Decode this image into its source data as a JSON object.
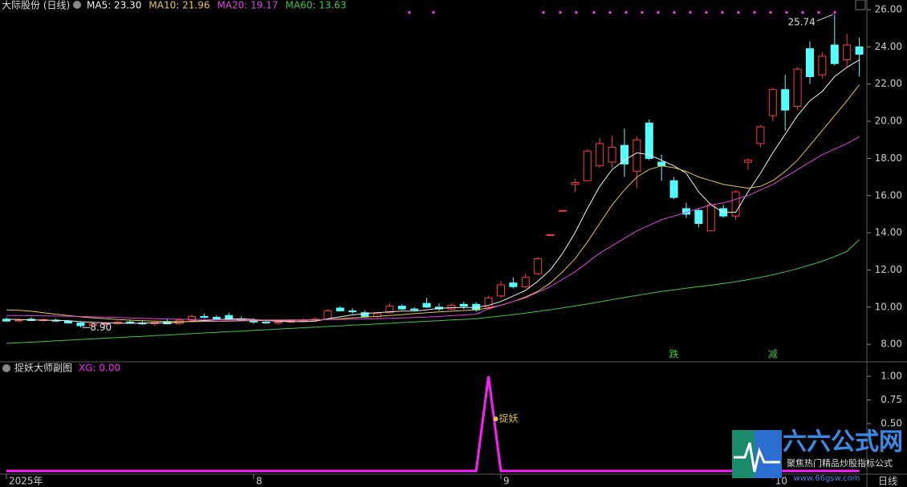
{
  "chart_data": [
    {
      "type": "candlestick",
      "title": "大际股份 (日线)",
      "ylim": [
        7.1,
        26.52
      ],
      "yticks": [
        {
          "value": 8,
          "label": "8.00"
        },
        {
          "value": 10,
          "label": "10.00"
        },
        {
          "value": 12,
          "label": "12.00"
        },
        {
          "value": 14,
          "label": "14.00"
        },
        {
          "value": 16,
          "label": "16.00"
        },
        {
          "value": 18,
          "label": "18.00"
        },
        {
          "value": 20,
          "label": "20.00"
        },
        {
          "value": 22,
          "label": "22.00"
        },
        {
          "value": 24,
          "label": "24.00"
        },
        {
          "value": 26,
          "label": "26.00"
        }
      ],
      "up_color": "#ff3c3c",
      "down_color": "#54ffff",
      "categories": [
        "2025年",
        null,
        null,
        null,
        null,
        null,
        null,
        null,
        null,
        null,
        null,
        null,
        null,
        null,
        null,
        null,
        null,
        null,
        null,
        null,
        "8",
        null,
        null,
        null,
        null,
        null,
        null,
        null,
        null,
        null,
        null,
        null,
        null,
        null,
        null,
        null,
        null,
        null,
        null,
        null,
        "9",
        null,
        null,
        null,
        null,
        null,
        null,
        null,
        null,
        null,
        null,
        null,
        null,
        null,
        null,
        null,
        null,
        null,
        null,
        null,
        null,
        null,
        "10",
        null,
        null,
        null,
        null,
        null,
        null,
        null
      ],
      "period_label": "日线",
      "ohlc": [
        [
          9.35,
          9.45,
          9.2,
          9.25
        ],
        [
          9.3,
          9.4,
          9.2,
          9.3
        ],
        [
          9.35,
          9.45,
          9.25,
          9.28
        ],
        [
          9.3,
          9.4,
          9.2,
          9.32
        ],
        [
          9.3,
          9.38,
          9.2,
          9.25
        ],
        [
          9.25,
          9.32,
          9.1,
          9.15
        ],
        [
          9.15,
          9.2,
          8.9,
          9.0
        ],
        [
          9.0,
          9.15,
          8.95,
          9.1
        ],
        [
          9.1,
          9.2,
          9.0,
          9.12
        ],
        [
          9.12,
          9.25,
          9.05,
          9.2
        ],
        [
          9.2,
          9.3,
          9.1,
          9.15
        ],
        [
          9.15,
          9.25,
          9.05,
          9.1
        ],
        [
          9.1,
          9.2,
          9.0,
          9.18
        ],
        [
          9.2,
          9.35,
          9.1,
          9.1
        ],
        [
          9.1,
          9.4,
          9.05,
          9.3
        ],
        [
          9.3,
          9.6,
          9.25,
          9.5
        ],
        [
          9.5,
          9.65,
          9.4,
          9.45
        ],
        [
          9.45,
          9.55,
          9.3,
          9.35
        ],
        [
          9.55,
          9.7,
          9.3,
          9.35
        ],
        [
          9.35,
          9.5,
          9.25,
          9.3
        ],
        [
          9.3,
          9.4,
          9.1,
          9.2
        ],
        [
          9.2,
          9.3,
          9.1,
          9.15
        ],
        [
          9.15,
          9.25,
          9.05,
          9.2
        ],
        [
          9.2,
          9.35,
          9.15,
          9.25
        ],
        [
          9.25,
          9.4,
          9.2,
          9.3
        ],
        [
          9.3,
          9.45,
          9.2,
          9.35
        ],
        [
          9.35,
          9.9,
          9.3,
          9.8
        ],
        [
          9.95,
          10.05,
          9.75,
          9.8
        ],
        [
          9.8,
          9.95,
          9.65,
          9.75
        ],
        [
          9.7,
          9.8,
          9.45,
          9.5
        ],
        [
          9.5,
          9.7,
          9.4,
          9.65
        ],
        [
          9.7,
          10.2,
          9.65,
          10.05
        ],
        [
          10.05,
          10.15,
          9.85,
          9.9
        ],
        [
          9.9,
          10.0,
          9.8,
          9.85
        ],
        [
          10.2,
          10.5,
          9.95,
          10.0
        ],
        [
          10.0,
          10.2,
          9.8,
          9.9
        ],
        [
          9.9,
          10.2,
          9.85,
          10.1
        ],
        [
          10.15,
          10.3,
          9.9,
          10.05
        ],
        [
          10.15,
          10.25,
          9.75,
          9.85
        ],
        [
          10.0,
          10.6,
          9.9,
          10.5
        ],
        [
          10.6,
          11.4,
          10.5,
          11.2
        ],
        [
          11.3,
          11.6,
          11.0,
          11.1
        ],
        [
          11.1,
          11.8,
          11.0,
          11.6
        ],
        [
          11.8,
          12.7,
          11.7,
          12.6
        ],
        [
          13.9,
          13.9,
          13.9,
          13.9
        ],
        [
          15.2,
          15.2,
          15.2,
          15.2
        ],
        [
          16.6,
          16.9,
          16.2,
          16.7
        ],
        [
          16.8,
          18.5,
          16.8,
          18.4
        ],
        [
          17.6,
          19.1,
          17.5,
          18.8
        ],
        [
          17.8,
          19.2,
          17.5,
          18.6
        ],
        [
          18.7,
          19.6,
          17.0,
          17.7
        ],
        [
          17.3,
          19.2,
          16.4,
          19.0
        ],
        [
          19.9,
          20.1,
          17.9,
          18.0
        ],
        [
          17.8,
          18.2,
          16.8,
          17.6
        ],
        [
          16.8,
          17.0,
          15.8,
          15.9
        ],
        [
          15.3,
          15.6,
          14.8,
          15.0
        ],
        [
          15.2,
          15.3,
          14.3,
          14.5
        ],
        [
          14.1,
          15.6,
          14.1,
          15.5
        ],
        [
          15.3,
          15.5,
          14.8,
          14.9
        ],
        [
          14.9,
          16.3,
          14.7,
          16.2
        ],
        [
          17.8,
          18.0,
          17.4,
          17.9
        ],
        [
          18.8,
          19.8,
          18.6,
          19.7
        ],
        [
          20.3,
          21.8,
          20.0,
          21.7
        ],
        [
          21.7,
          22.5,
          19.5,
          20.6
        ],
        [
          20.8,
          22.9,
          20.6,
          22.8
        ],
        [
          23.9,
          24.3,
          22.0,
          22.4
        ],
        [
          22.5,
          23.7,
          22.3,
          23.5
        ],
        [
          24.1,
          25.74,
          23.0,
          23.1
        ],
        [
          23.3,
          24.7,
          22.9,
          24.1
        ],
        [
          24.0,
          24.5,
          22.4,
          23.6
        ]
      ],
      "max_label": "25.74",
      "min_label": "8.90",
      "series": [
        {
          "name": "MA5",
          "legend": "MA5: 23.30",
          "color": "#f0f0f0",
          "values": [
            9.35,
            9.33,
            9.31,
            9.3,
            9.29,
            9.27,
            9.22,
            9.18,
            9.15,
            9.14,
            9.13,
            9.14,
            9.15,
            9.15,
            9.18,
            9.24,
            9.28,
            9.32,
            9.36,
            9.37,
            9.34,
            9.28,
            9.24,
            9.22,
            9.22,
            9.25,
            9.38,
            9.48,
            9.58,
            9.66,
            9.7,
            9.75,
            9.79,
            9.79,
            9.85,
            9.94,
            9.97,
            9.98,
            9.98,
            10.1,
            10.3,
            10.6,
            10.9,
            11.4,
            12.0,
            12.9,
            14.0,
            15.3,
            16.5,
            17.4,
            17.9,
            18.3,
            18.2,
            17.9,
            17.6,
            17.2,
            16.2,
            15.5,
            15.1,
            15.1,
            16.2,
            17.2,
            18.3,
            19.3,
            20.3,
            21.1,
            21.6,
            22.4,
            22.9,
            23.3
          ]
        },
        {
          "name": "MA10",
          "legend": "MA10: 21.96",
          "color": "#e8c53a",
          "values": [
            9.85,
            9.83,
            9.78,
            9.7,
            9.62,
            9.55,
            9.48,
            9.42,
            9.38,
            9.33,
            9.3,
            9.27,
            9.25,
            9.23,
            9.22,
            9.22,
            9.23,
            9.24,
            9.25,
            9.26,
            9.27,
            9.28,
            9.28,
            9.29,
            9.3,
            9.31,
            9.34,
            9.38,
            9.42,
            9.46,
            9.5,
            9.55,
            9.6,
            9.65,
            9.7,
            9.74,
            9.78,
            9.82,
            9.86,
            9.95,
            10.1,
            10.3,
            10.55,
            10.85,
            11.3,
            11.9,
            12.6,
            13.5,
            14.5,
            15.5,
            16.3,
            17.0,
            17.4,
            17.6,
            17.5,
            17.3,
            17.0,
            16.8,
            16.6,
            16.5,
            16.4,
            16.5,
            16.8,
            17.3,
            17.9,
            18.7,
            19.5,
            20.3,
            21.1,
            21.96
          ]
        },
        {
          "name": "MA20",
          "legend": "MA20: 19.17",
          "color": "#e040e0",
          "values": [
            9.55,
            9.55,
            9.54,
            9.53,
            9.52,
            9.51,
            9.5,
            9.48,
            9.46,
            9.44,
            9.42,
            9.4,
            9.38,
            9.36,
            9.35,
            9.34,
            9.33,
            9.32,
            9.31,
            9.31,
            9.31,
            9.31,
            9.31,
            9.32,
            9.32,
            9.33,
            9.33,
            9.34,
            9.35,
            9.36,
            9.38,
            9.4,
            9.42,
            9.44,
            9.47,
            9.5,
            9.54,
            9.58,
            9.62,
            9.9,
            10.1,
            10.3,
            10.5,
            10.8,
            11.1,
            11.5,
            11.9,
            12.4,
            12.9,
            13.3,
            13.7,
            14.1,
            14.4,
            14.7,
            14.9,
            15.1,
            15.3,
            15.5,
            15.6,
            15.8,
            16.0,
            16.3,
            16.6,
            17.0,
            17.4,
            17.8,
            18.2,
            18.5,
            18.8,
            19.17
          ]
        },
        {
          "name": "MA60",
          "legend": "MA60: 13.63",
          "color": "#3cc83c",
          "values": [
            8.05,
            8.08,
            8.12,
            8.15,
            8.19,
            8.22,
            8.26,
            8.29,
            8.33,
            8.36,
            8.4,
            8.43,
            8.47,
            8.5,
            8.54,
            8.57,
            8.61,
            8.64,
            8.68,
            8.71,
            8.75,
            8.78,
            8.82,
            8.85,
            8.89,
            8.92,
            8.96,
            8.99,
            9.03,
            9.06,
            9.1,
            9.13,
            9.17,
            9.2,
            9.24,
            9.27,
            9.31,
            9.34,
            9.38,
            9.45,
            9.52,
            9.6,
            9.68,
            9.77,
            9.86,
            9.96,
            10.06,
            10.17,
            10.28,
            10.4,
            10.52,
            10.63,
            10.74,
            10.84,
            10.93,
            11.02,
            11.1,
            11.18,
            11.27,
            11.37,
            11.48,
            11.6,
            11.74,
            11.9,
            12.07,
            12.26,
            12.47,
            12.72,
            13.0,
            13.63
          ]
        }
      ],
      "signals": [
        {
          "text": "跌",
          "index": 54
        },
        {
          "text": "减",
          "index": 62
        }
      ]
    },
    {
      "type": "line",
      "title": "捉妖大师副图",
      "ylim": [
        -0.025,
        1.144
      ],
      "yticks": [
        {
          "value": 0.5,
          "label": "0.50"
        },
        {
          "value": 0.75,
          "label": "0.75"
        },
        {
          "value": 1,
          "label": "1.00"
        }
      ],
      "series": [
        {
          "name": "XG",
          "legend": "XG: 0.00",
          "color": "#ff1eff",
          "values": [
            0,
            0,
            0,
            0,
            0,
            0,
            0,
            0,
            0,
            0,
            0,
            0,
            0,
            0,
            0,
            0,
            0,
            0,
            0,
            0,
            0,
            0,
            0,
            0,
            0,
            0,
            0,
            0,
            0,
            0,
            0,
            0,
            0,
            0,
            0,
            0,
            0,
            0,
            0,
            1,
            0,
            0,
            0,
            0,
            0,
            0,
            0,
            0,
            0,
            0,
            0,
            0,
            0,
            0,
            0,
            0,
            0,
            0,
            0,
            0,
            0,
            0,
            0,
            0,
            0,
            0,
            0,
            0,
            0,
            0
          ]
        }
      ],
      "annotation": "捉妖"
    }
  ],
  "logo": {
    "name": "六六公式网",
    "slogan": "聚焦热门精品炒股指标公式",
    "url": "www.66gsw.com"
  }
}
